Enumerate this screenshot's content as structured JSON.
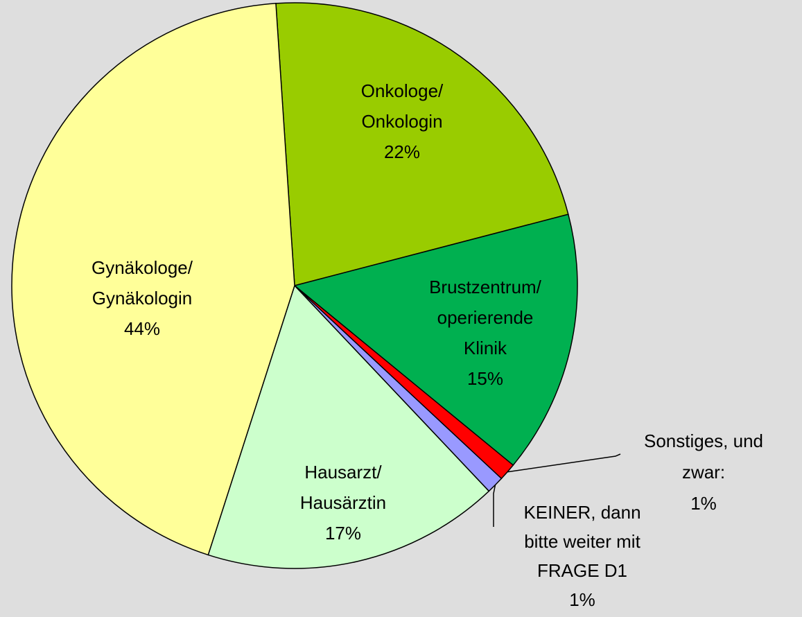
{
  "chart_data": {
    "type": "pie",
    "categories": [
      "Onkologe/\nOnkologin",
      "Brustzentrum/\noperierende\nKlinik",
      "Sonstiges, und\nzwar:",
      "KEINER, dann\nbitte weiter mit\nFRAGE D1",
      "Hausarzt/\nHausärztin",
      "Gynäkologe/\nGynäkologin"
    ],
    "values": [
      22,
      15,
      1,
      1,
      17,
      44
    ],
    "value_labels": [
      "22%",
      "15%",
      "1%",
      "1%",
      "17%",
      "44%"
    ],
    "colors": [
      "#99cc00",
      "#00b050",
      "#ff0000",
      "#9999ff",
      "#ccffcc",
      "#ffff99"
    ]
  }
}
